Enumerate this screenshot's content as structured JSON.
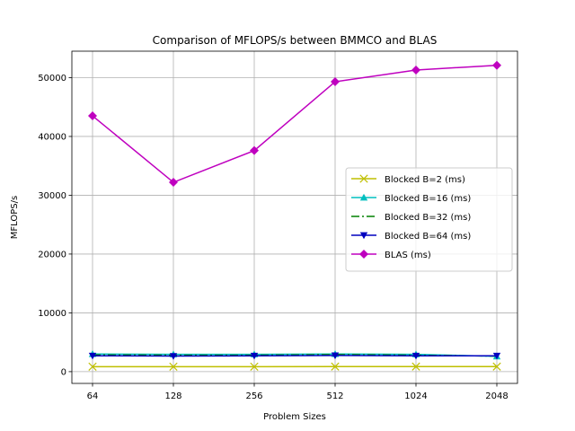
{
  "chart_data": {
    "type": "line",
    "title": "Comparison of MFLOPS/s between BMMCO and BLAS",
    "xlabel": "Problem Sizes",
    "ylabel": "MFLOPS/s",
    "categories": [
      "64",
      "128",
      "256",
      "512",
      "1024",
      "2048"
    ],
    "ylim": [
      -2000,
      54500
    ],
    "yticks": [
      0,
      10000,
      20000,
      30000,
      40000,
      50000
    ],
    "grid": true,
    "legend_position": "center-right",
    "series": [
      {
        "name": "Blocked B=2 (ms)",
        "color": "#bfbf00",
        "marker": "x",
        "linestyle": "solid",
        "values": [
          850,
          850,
          850,
          860,
          860,
          860
        ]
      },
      {
        "name": "Blocked B=16 (ms)",
        "color": "#00bfbf",
        "marker": "triangle-up",
        "linestyle": "solid",
        "values": [
          3000,
          2950,
          2950,
          3000,
          2950,
          2600
        ]
      },
      {
        "name": "Blocked B=32 (ms)",
        "color": "#008000",
        "marker": "none",
        "linestyle": "dashdot",
        "values": [
          2850,
          2800,
          2800,
          2900,
          2800,
          2650
        ]
      },
      {
        "name": "Blocked B=64 (ms)",
        "color": "#0000bf",
        "marker": "triangle-down",
        "linestyle": "solid",
        "values": [
          2700,
          2650,
          2700,
          2750,
          2700,
          2700
        ]
      },
      {
        "name": "BLAS (ms)",
        "color": "#bf00bf",
        "marker": "diamond",
        "linestyle": "solid",
        "values": [
          43500,
          32200,
          37600,
          49300,
          51300,
          52100
        ]
      }
    ]
  }
}
